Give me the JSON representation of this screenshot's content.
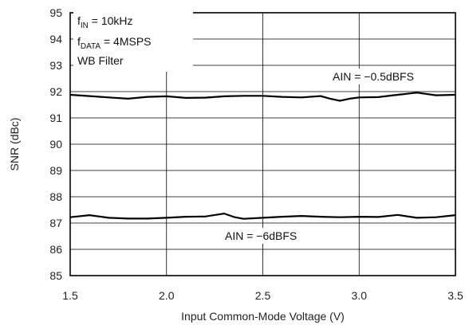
{
  "chart_data": {
    "type": "line",
    "xlabel": "Input Common-Mode Voltage (V)",
    "ylabel": "SNR (dBc)",
    "xlim": [
      1.5,
      3.5
    ],
    "ylim": [
      85,
      95
    ],
    "xticks": [
      1.5,
      2.0,
      2.5,
      3.0,
      3.5
    ],
    "xtick_labels": [
      "1.5",
      "2.0",
      "2.5",
      "3.0",
      "3.5"
    ],
    "yticks": [
      85,
      86,
      87,
      88,
      89,
      90,
      91,
      92,
      93,
      94,
      95
    ],
    "ytick_labels": [
      "85",
      "86",
      "87",
      "88",
      "89",
      "90",
      "91",
      "92",
      "93",
      "94",
      "95"
    ],
    "grid": true,
    "series": [
      {
        "name": "AIN = −0.5dBFS",
        "x": [
          1.5,
          1.6,
          1.7,
          1.8,
          1.9,
          2.0,
          2.1,
          2.2,
          2.3,
          2.4,
          2.5,
          2.6,
          2.7,
          2.8,
          2.85,
          2.9,
          2.95,
          3.0,
          3.1,
          3.2,
          3.3,
          3.4,
          3.5
        ],
        "y": [
          91.88,
          91.83,
          91.78,
          91.73,
          91.8,
          91.82,
          91.76,
          91.77,
          91.82,
          91.84,
          91.84,
          91.8,
          91.78,
          91.83,
          91.73,
          91.65,
          91.73,
          91.78,
          91.79,
          91.88,
          91.96,
          91.86,
          91.88
        ],
        "color": "#000000"
      },
      {
        "name": "AIN = −6dBFS",
        "x": [
          1.5,
          1.6,
          1.7,
          1.8,
          1.9,
          2.0,
          2.1,
          2.2,
          2.3,
          2.35,
          2.4,
          2.5,
          2.6,
          2.7,
          2.8,
          2.9,
          3.0,
          3.1,
          3.2,
          3.3,
          3.4,
          3.5
        ],
        "y": [
          87.22,
          87.3,
          87.2,
          87.17,
          87.17,
          87.2,
          87.24,
          87.25,
          87.36,
          87.23,
          87.16,
          87.2,
          87.24,
          87.27,
          87.24,
          87.22,
          87.24,
          87.23,
          87.31,
          87.2,
          87.22,
          87.3
        ],
        "color": "#000000"
      }
    ],
    "annotations": {
      "fin": {
        "main": "f",
        "sub": "IN",
        "rest": " = 10kHz"
      },
      "fdata": {
        "main": "f",
        "sub": "DATA",
        "rest": " = 4MSPS"
      },
      "filter": "WB Filter",
      "label_a": "AIN = −0.5dBFS",
      "label_b": "AIN = −6dBFS"
    }
  }
}
